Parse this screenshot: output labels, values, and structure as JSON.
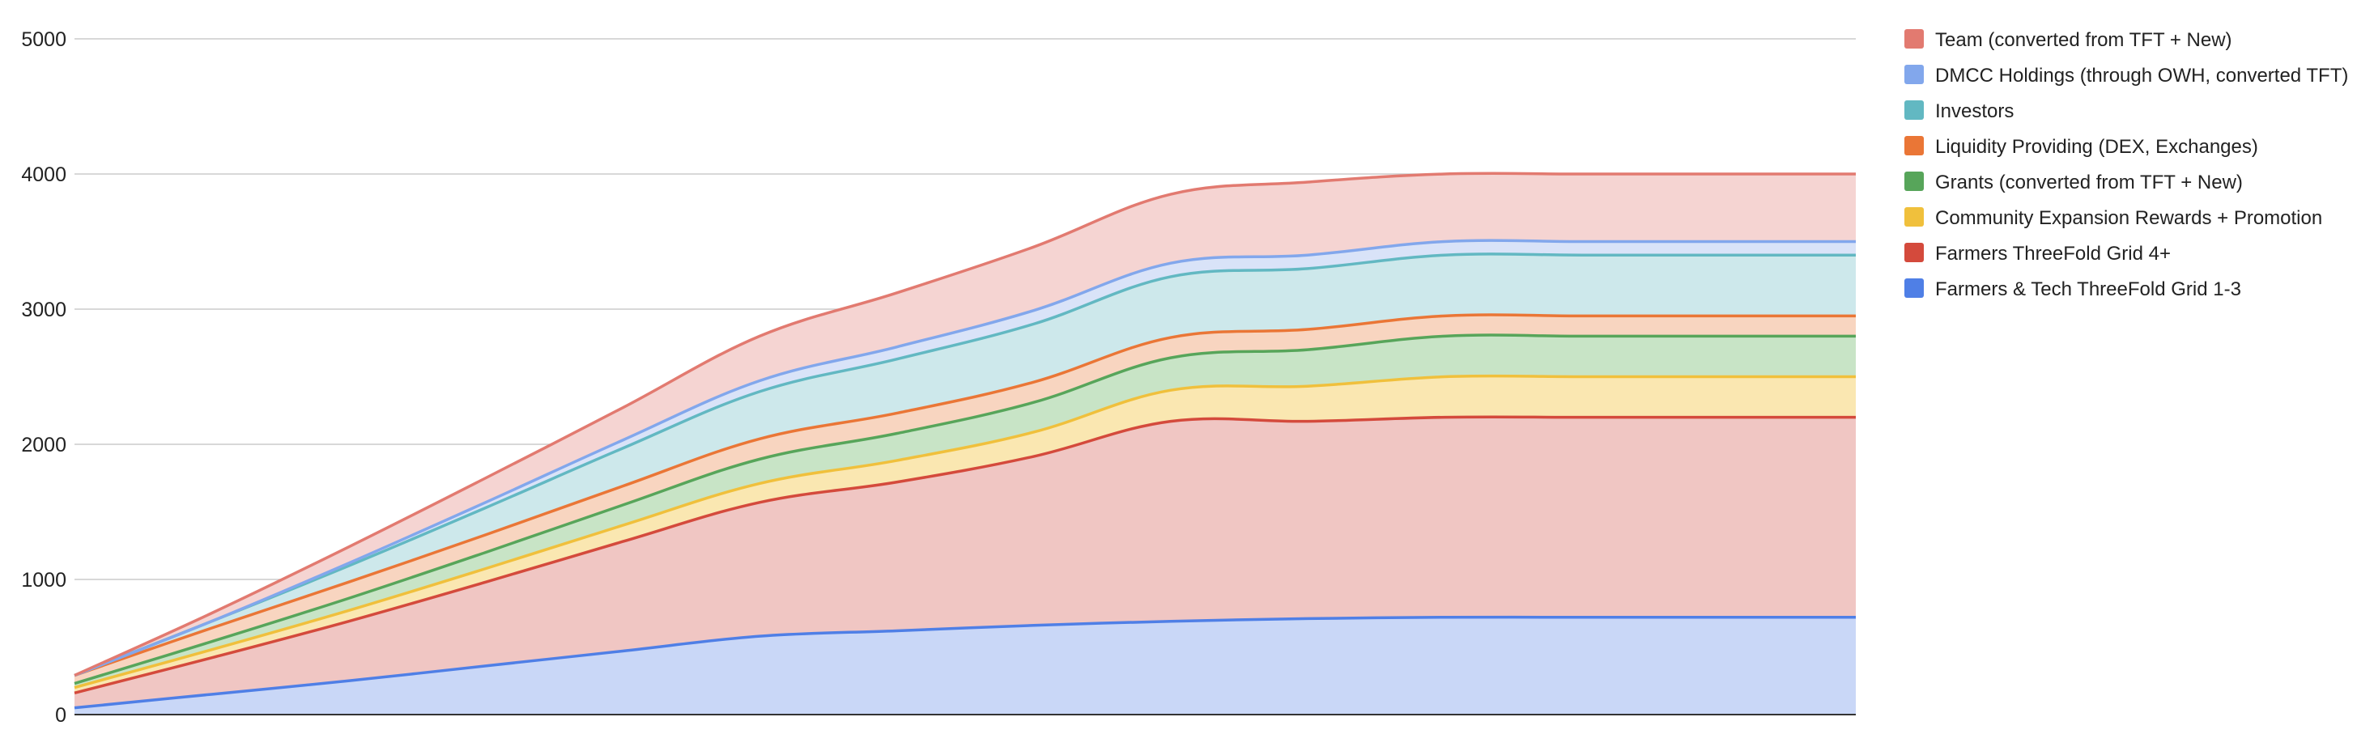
{
  "chart_data": {
    "type": "area",
    "stacked": true,
    "title": "",
    "xlabel": "",
    "ylabel": "",
    "ylim": [
      0,
      5000
    ],
    "yticks": [
      0,
      1000,
      2000,
      3000,
      4000,
      5000
    ],
    "ytick_labels": [
      "0",
      "1000",
      "2000",
      "3000",
      "4000",
      "5000"
    ],
    "grid": true,
    "legend_position": "right",
    "x": [
      0,
      1,
      2,
      3,
      4,
      5,
      6,
      7,
      8,
      9,
      10,
      11,
      12,
      13
    ],
    "series": [
      {
        "name": "Farmers & Tech ThreeFold Grid 1-3",
        "color": "#4f7fe6",
        "fill": "#c9d7f7",
        "values": [
          50,
          150,
          250,
          360,
          470,
          580,
          620,
          660,
          690,
          710,
          720,
          720,
          720,
          720
        ]
      },
      {
        "name": "Farmers ThreeFold Grid 4+",
        "color": "#d44a3c",
        "fill": "#f0c6c3",
        "values": [
          110,
          270,
          440,
          620,
          810,
          990,
          1100,
          1250,
          1480,
          1460,
          1480,
          1480,
          1480,
          1480
        ]
      },
      {
        "name": "Community Expansion Rewards + Promotion",
        "color": "#f0c03c",
        "fill": "#fae7b1",
        "values": [
          40,
          60,
          80,
          100,
          120,
          140,
          160,
          180,
          230,
          260,
          300,
          300,
          300,
          300
        ]
      },
      {
        "name": "Grants (converted from TFT + New)",
        "color": "#57a55a",
        "fill": "#c8e4c6",
        "values": [
          30,
          60,
          90,
          120,
          150,
          180,
          200,
          220,
          240,
          270,
          300,
          300,
          300,
          300
        ]
      },
      {
        "name": "Liquidity Providing (DEX, Exchanges)",
        "color": "#ea7636",
        "fill": "#f8d5c0",
        "values": [
          60,
          100,
          120,
          130,
          140,
          150,
          150,
          150,
          150,
          150,
          150,
          150,
          150,
          150
        ]
      },
      {
        "name": "Investors",
        "color": "#62b8c2",
        "fill": "#cde8eb",
        "values": [
          0,
          50,
          120,
          200,
          280,
          350,
          400,
          430,
          450,
          450,
          450,
          450,
          450,
          450
        ]
      },
      {
        "name": "DMCC Holdings (through OWH, converted TFT)",
        "color": "#82a7ec",
        "fill": "#d9e3f8",
        "values": [
          0,
          0,
          20,
          40,
          60,
          80,
          90,
          100,
          100,
          100,
          100,
          100,
          100,
          100
        ]
      },
      {
        "name": "Team (converted from TFT + New)",
        "color": "#e27a70",
        "fill": "#f5d4d2",
        "values": [
          0,
          60,
          120,
          180,
          240,
          330,
          400,
          470,
          510,
          540,
          500,
          500,
          500,
          500
        ]
      }
    ]
  }
}
